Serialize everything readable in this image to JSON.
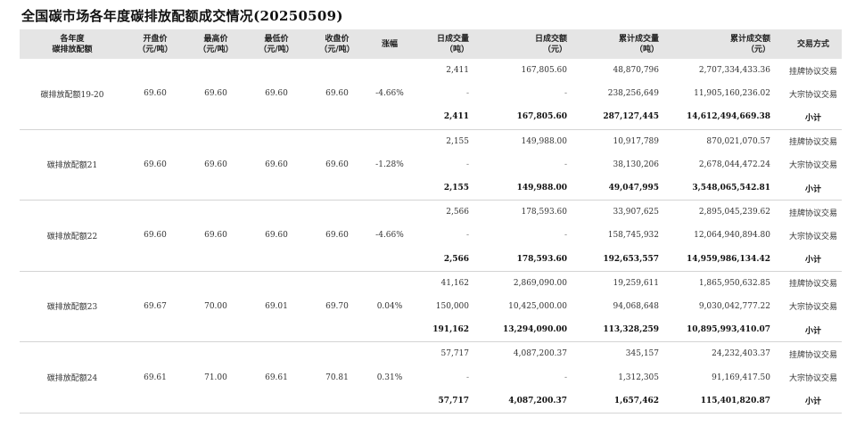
{
  "title": "全国碳市场各年度碳排放配额成交情况(20250509)",
  "headers": [
    [
      "各年度",
      "碳排放配额"
    ],
    [
      "开盘价",
      "（元/吨）"
    ],
    [
      "最高价",
      "（元/吨）"
    ],
    [
      "最低价",
      "（元/吨）"
    ],
    [
      "收盘价",
      "（元/吨）"
    ],
    [
      "涨幅"
    ],
    [
      "日成交量",
      "（吨）"
    ],
    [
      "日成交额",
      "（元）"
    ],
    [
      "累计成交量",
      "（吨）"
    ],
    [
      "累计成交额",
      "（元）"
    ],
    [
      "交易方式"
    ]
  ],
  "groups": [
    {
      "name": "碳排放配额19-20",
      "open": "69.60",
      "high": "69.60",
      "low": "69.60",
      "close": "69.60",
      "change": "-4.66%",
      "rows": [
        {
          "vol": "2,411",
          "amt": "167,805.60",
          "cvol": "48,870,796",
          "camt": "2,707,334,433.36",
          "mode": "挂牌协议交易"
        },
        {
          "vol": "-",
          "amt": "-",
          "cvol": "238,256,649",
          "camt": "11,905,160,236.02",
          "mode": "大宗协议交易"
        },
        {
          "vol": "2,411",
          "amt": "167,805.60",
          "cvol": "287,127,445",
          "camt": "14,612,494,669.38",
          "mode": "小计"
        }
      ]
    },
    {
      "name": "碳排放配额21",
      "open": "69.60",
      "high": "69.60",
      "low": "69.60",
      "close": "69.60",
      "change": "-1.28%",
      "rows": [
        {
          "vol": "2,155",
          "amt": "149,988.00",
          "cvol": "10,917,789",
          "camt": "870,021,070.57",
          "mode": "挂牌协议交易"
        },
        {
          "vol": "-",
          "amt": "-",
          "cvol": "38,130,206",
          "camt": "2,678,044,472.24",
          "mode": "大宗协议交易"
        },
        {
          "vol": "2,155",
          "amt": "149,988.00",
          "cvol": "49,047,995",
          "camt": "3,548,065,542.81",
          "mode": "小计"
        }
      ]
    },
    {
      "name": "碳排放配额22",
      "open": "69.60",
      "high": "69.60",
      "low": "69.60",
      "close": "69.60",
      "change": "-4.66%",
      "rows": [
        {
          "vol": "2,566",
          "amt": "178,593.60",
          "cvol": "33,907,625",
          "camt": "2,895,045,239.62",
          "mode": "挂牌协议交易"
        },
        {
          "vol": "-",
          "amt": "-",
          "cvol": "158,745,932",
          "camt": "12,064,940,894.80",
          "mode": "大宗协议交易"
        },
        {
          "vol": "2,566",
          "amt": "178,593.60",
          "cvol": "192,653,557",
          "camt": "14,959,986,134.42",
          "mode": "小计"
        }
      ]
    },
    {
      "name": "碳排放配额23",
      "open": "69.67",
      "high": "70.00",
      "low": "69.01",
      "close": "69.70",
      "change": "0.04%",
      "rows": [
        {
          "vol": "41,162",
          "amt": "2,869,090.00",
          "cvol": "19,259,611",
          "camt": "1,865,950,632.85",
          "mode": "挂牌协议交易"
        },
        {
          "vol": "150,000",
          "amt": "10,425,000.00",
          "cvol": "94,068,648",
          "camt": "9,030,042,777.22",
          "mode": "大宗协议交易"
        },
        {
          "vol": "191,162",
          "amt": "13,294,090.00",
          "cvol": "113,328,259",
          "camt": "10,895,993,410.07",
          "mode": "小计"
        }
      ]
    },
    {
      "name": "碳排放配额24",
      "open": "69.61",
      "high": "71.00",
      "low": "69.61",
      "close": "70.81",
      "change": "0.31%",
      "rows": [
        {
          "vol": "57,717",
          "amt": "4,087,200.37",
          "cvol": "345,157",
          "camt": "24,232,403.37",
          "mode": "挂牌协议交易"
        },
        {
          "vol": "-",
          "amt": "-",
          "cvol": "1,312,305",
          "camt": "91,169,417.50",
          "mode": "大宗协议交易"
        },
        {
          "vol": "57,717",
          "amt": "4,087,200.37",
          "cvol": "1,657,462",
          "camt": "115,401,820.87",
          "mode": "小计"
        }
      ]
    }
  ]
}
